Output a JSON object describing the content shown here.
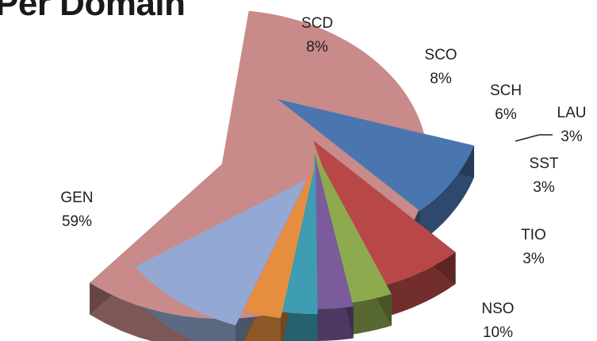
{
  "chart_data": {
    "type": "pie",
    "title": "Per Domain",
    "slices": [
      {
        "label": "GEN",
        "percent_label": "59%",
        "value": 59,
        "color": "#C98A8A",
        "exploded": true
      },
      {
        "label": "SCD",
        "percent_label": "8%",
        "value": 8,
        "color": "#4A76B0",
        "exploded": true
      },
      {
        "label": "SCO",
        "percent_label": "8%",
        "value": 8,
        "color": "#B84848"
      },
      {
        "label": "SCH",
        "percent_label": "6%",
        "value": 6,
        "color": "#8DAA4E"
      },
      {
        "label": "LAU",
        "percent_label": "3%",
        "value": 3,
        "color": "#7A5B9C"
      },
      {
        "label": "SST",
        "percent_label": "3%",
        "value": 3,
        "color": "#3E9CB3"
      },
      {
        "label": "TIO",
        "percent_label": "3%",
        "value": 3,
        "color": "#E58E3E"
      },
      {
        "label": "NSO",
        "percent_label": "10%",
        "value": 10,
        "color": "#93A9D3"
      }
    ],
    "legend": "none",
    "style": "3d-exploded"
  }
}
